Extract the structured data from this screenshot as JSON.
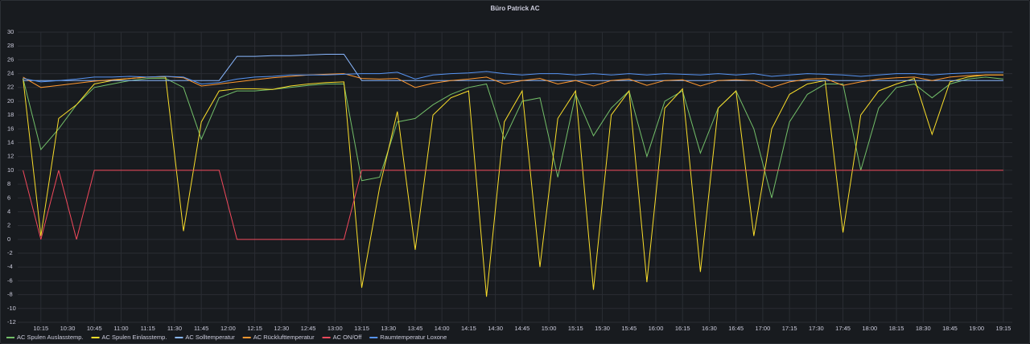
{
  "chart_data": {
    "type": "line",
    "title": "Büro Patrick AC",
    "x": [
      "10:05",
      "10:15",
      "10:25",
      "10:35",
      "10:45",
      "10:55",
      "11:05",
      "11:15",
      "11:25",
      "11:35",
      "11:45",
      "11:55",
      "12:05",
      "12:15",
      "12:25",
      "12:35",
      "12:45",
      "12:55",
      "13:05",
      "13:15",
      "13:25",
      "13:35",
      "13:45",
      "13:55",
      "14:05",
      "14:15",
      "14:25",
      "14:35",
      "14:45",
      "14:55",
      "15:05",
      "15:15",
      "15:25",
      "15:35",
      "15:45",
      "15:55",
      "16:05",
      "16:15",
      "16:25",
      "16:35",
      "16:45",
      "16:55",
      "17:05",
      "17:15",
      "17:25",
      "17:35",
      "17:45",
      "17:55",
      "18:05",
      "18:15",
      "18:25",
      "18:35",
      "18:45",
      "18:55",
      "19:05",
      "19:15"
    ],
    "xlim": [
      "10:02",
      "19:20"
    ],
    "xticks": [
      "10:15",
      "10:30",
      "10:45",
      "11:00",
      "11:15",
      "11:30",
      "11:45",
      "12:00",
      "12:15",
      "12:30",
      "12:45",
      "13:00",
      "13:15",
      "13:30",
      "13:45",
      "14:00",
      "14:15",
      "14:30",
      "14:45",
      "15:00",
      "15:15",
      "15:30",
      "15:45",
      "16:00",
      "16:15",
      "16:30",
      "16:45",
      "17:00",
      "17:15",
      "17:30",
      "17:45",
      "18:00",
      "18:15",
      "18:30",
      "18:45",
      "19:00",
      "19:15"
    ],
    "ylim": [
      -12,
      30
    ],
    "yticks": [
      -12,
      -10,
      -8,
      -6,
      -4,
      -2,
      0,
      2,
      4,
      6,
      8,
      10,
      12,
      14,
      16,
      18,
      20,
      22,
      24,
      26,
      28,
      30
    ],
    "grid": true,
    "series": [
      {
        "name": "AC Spulen Auslasstemp.",
        "color": "#73bf69",
        "values": [
          23.3,
          13,
          16,
          19.5,
          22,
          22.5,
          23,
          23.3,
          23.3,
          22,
          14.5,
          20.5,
          21.5,
          21.5,
          21.7,
          22,
          22.3,
          22.5,
          22.5,
          8.5,
          9,
          17,
          17.5,
          19.5,
          21,
          22,
          22.5,
          14.5,
          20,
          20.5,
          9,
          21,
          15,
          19,
          21.5,
          12,
          20,
          21.5,
          12.5,
          19,
          21.5,
          16,
          6,
          17,
          21,
          22.5,
          22.5,
          10,
          19,
          22,
          22.5,
          20.5,
          22.5,
          23.2,
          23.5,
          23.2
        ]
      },
      {
        "name": "AC Spulen Einlasstemp.",
        "color": "#fade2a",
        "values": [
          23.3,
          0.5,
          17.5,
          19.5,
          22.5,
          23,
          23.3,
          23.5,
          23.5,
          1.2,
          17,
          21.5,
          21.8,
          21.8,
          21.7,
          22.2,
          22.5,
          22.7,
          22.8,
          -7,
          7.5,
          18.5,
          -1.5,
          18,
          20.5,
          21.5,
          -8.3,
          17,
          21.5,
          -4,
          17.5,
          21.5,
          -7.3,
          18,
          21.5,
          -6.2,
          19,
          21.8,
          -4.7,
          19,
          21.5,
          0.5,
          16,
          21,
          22.5,
          23,
          1,
          18,
          21.5,
          22.5,
          23.3,
          15.2,
          22.8,
          23.5,
          23.8,
          23.8
        ]
      },
      {
        "name": "AC Solltemperatur",
        "color": "#8ab8ff",
        "values": [
          23,
          23,
          23,
          23,
          23,
          23,
          23,
          23,
          23,
          23,
          23,
          23,
          26.5,
          26.5,
          26.6,
          26.6,
          26.7,
          26.8,
          26.8,
          23,
          23,
          23,
          23,
          23,
          23,
          23,
          23,
          23,
          23,
          23,
          23,
          23,
          23,
          23,
          23,
          23,
          23,
          23,
          23,
          23,
          23,
          23,
          23,
          23,
          23,
          23,
          23,
          23,
          23,
          23,
          23,
          23,
          23,
          23,
          23,
          23
        ]
      },
      {
        "name": "AC Rücklufttemperatur",
        "color": "#ff9830",
        "values": [
          23.5,
          22,
          22.3,
          22.6,
          22.9,
          23.1,
          23.3,
          23.5,
          23.6,
          23.4,
          22.2,
          22.5,
          22.8,
          23.1,
          23.4,
          23.6,
          23.8,
          23.9,
          24,
          23.3,
          23.2,
          23.3,
          22,
          22.6,
          23,
          23.2,
          23.5,
          22.5,
          23,
          23.3,
          22.5,
          23,
          22.2,
          23,
          23.2,
          22.3,
          23,
          23.1,
          22.2,
          23,
          23.1,
          23,
          22,
          22.8,
          23.2,
          23.3,
          22.3,
          22.8,
          23.2,
          23.4,
          23.5,
          23,
          23.5,
          23.7,
          23.8,
          23.8
        ]
      },
      {
        "name": "AC ON/Off",
        "color": "#f2495c",
        "values": [
          10,
          0,
          10,
          0,
          10,
          10,
          10,
          10,
          10,
          10,
          10,
          10,
          0,
          0,
          0,
          0,
          0,
          0,
          0,
          10,
          10,
          10,
          10,
          10,
          10,
          10,
          10,
          10,
          10,
          10,
          10,
          10,
          10,
          10,
          10,
          10,
          10,
          10,
          10,
          10,
          10,
          10,
          10,
          10,
          10,
          10,
          10,
          10,
          10,
          10,
          10,
          10,
          10,
          10,
          10,
          10
        ]
      },
      {
        "name": "Raumtemperatur Loxone",
        "color": "#5794f2",
        "values": [
          23.3,
          22.8,
          23,
          23.2,
          23.5,
          23.5,
          23.6,
          23.5,
          23.6,
          23.5,
          22.5,
          22.7,
          23.2,
          23.5,
          23.6,
          23.8,
          23.8,
          23.8,
          23.9,
          24,
          24,
          24.2,
          23.2,
          23.8,
          24,
          24.1,
          24.3,
          24,
          23.8,
          24,
          24,
          23.8,
          24,
          23.8,
          24,
          23.8,
          24,
          23.9,
          23.8,
          24,
          23.8,
          24,
          23.6,
          23.8,
          24,
          23.9,
          23.8,
          23.6,
          23.8,
          24,
          24,
          23.8,
          24,
          24.1,
          24.2,
          24.2
        ]
      }
    ]
  }
}
